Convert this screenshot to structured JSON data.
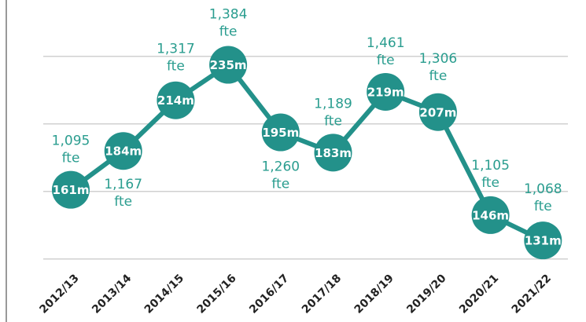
{
  "chart_data": {
    "type": "line",
    "categories": [
      "2012/13",
      "2013/14",
      "2014/15",
      "2015/16",
      "2016/17",
      "2017/18",
      "2018/19",
      "2019/20",
      "2020/21",
      "2021/22"
    ],
    "series": [
      {
        "color": "#23918a",
        "values": [
          161,
          184,
          214,
          235,
          195,
          183,
          219,
          207,
          146,
          131
        ],
        "value_labels": [
          "161m",
          "184m",
          "214m",
          "235m",
          "195m",
          "183m",
          "219m",
          "207m",
          "146m",
          "131m"
        ]
      }
    ],
    "annotations": [
      [
        "1,095",
        "fte"
      ],
      [
        "1,167",
        "fte"
      ],
      [
        "1,317",
        "fte"
      ],
      [
        "1,384",
        "fte"
      ],
      [
        "1,260",
        "fte"
      ],
      [
        "1,189",
        "fte"
      ],
      [
        "1,461",
        "fte"
      ],
      [
        "1,306",
        "fte"
      ],
      [
        "1,105",
        "fte"
      ],
      [
        "1,068",
        "fte"
      ]
    ],
    "ylim": [
      112,
      272
    ],
    "yticks": [
      120,
      160,
      200,
      240
    ],
    "grid": true
  }
}
